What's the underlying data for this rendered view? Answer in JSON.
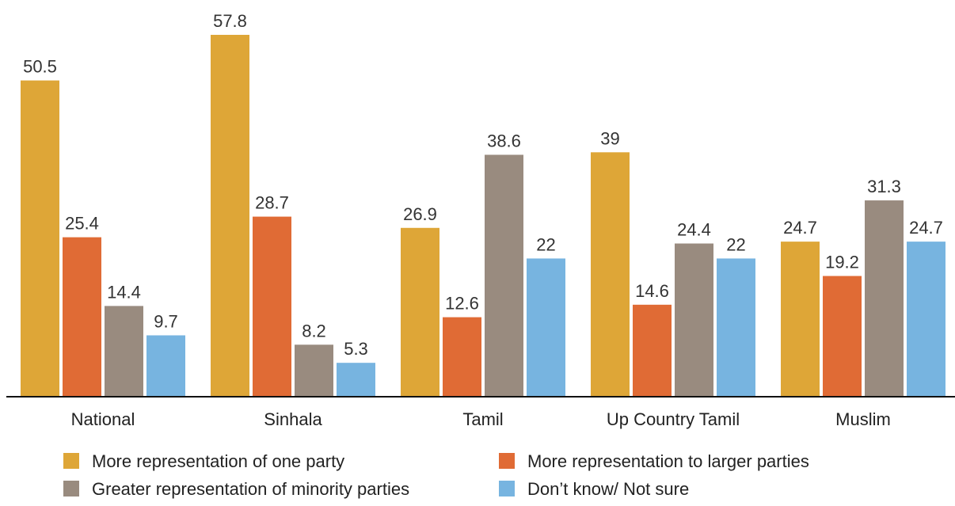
{
  "chart_data": {
    "type": "bar",
    "title": "",
    "xlabel": "",
    "ylabel": "",
    "ylim": [
      0,
      60
    ],
    "grid": false,
    "legend_position": "bottom",
    "categories": [
      "National",
      "Sinhala",
      "Tamil",
      "Up Country Tamil",
      "Muslim"
    ],
    "series": [
      {
        "name": "More representation of one party",
        "color": "#dea637",
        "values": [
          50.5,
          57.8,
          26.9,
          39,
          24.7
        ]
      },
      {
        "name": "More representation to larger parties",
        "color": "#e06b35",
        "values": [
          25.4,
          28.7,
          12.6,
          14.6,
          19.2
        ]
      },
      {
        "name": "Greater representation of minority parties",
        "color": "#998b7f",
        "values": [
          14.4,
          8.2,
          38.6,
          24.4,
          31.3
        ]
      },
      {
        "name": "Don’t know/ Not sure",
        "color": "#77b4e0",
        "values": [
          9.7,
          5.3,
          22,
          22,
          24.7
        ]
      }
    ]
  }
}
